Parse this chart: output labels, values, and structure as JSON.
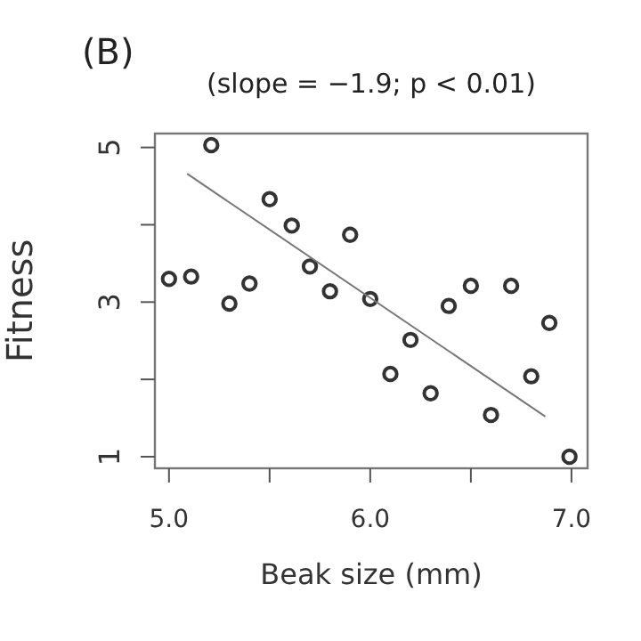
{
  "chart_data": {
    "type": "scatter",
    "title": "(B)",
    "subtitle": "(slope = −1.9; p < 0.01)",
    "xlabel": "Beak size (mm)",
    "ylabel": "Fitness",
    "xlim": [
      4.93,
      7.08
    ],
    "xticks": [
      {
        "value": 5.0,
        "label": "5.0"
      },
      {
        "value": 5.5,
        "label": null
      },
      {
        "value": 6.0,
        "label": "6.0"
      },
      {
        "value": 6.5,
        "label": null
      },
      {
        "value": 7.0,
        "label": "7.0"
      }
    ],
    "ylim": [
      0.85,
      5.18
    ],
    "yticks": [
      1,
      {
        "value": 2,
        "label": null
      },
      3,
      {
        "value": 4,
        "label": null
      },
      5
    ],
    "marker": "circle",
    "grid": false,
    "series": [
      {
        "color": "#333333",
        "x": [
          5.0,
          5.11,
          5.21,
          5.3,
          5.4,
          5.5,
          5.61,
          5.7,
          5.8,
          5.9,
          6.0,
          6.1,
          6.2,
          6.3,
          6.39,
          6.5,
          6.6,
          6.7,
          6.8,
          6.89,
          6.99
        ],
        "values": [
          3.3,
          3.33,
          5.03,
          2.98,
          3.24,
          4.33,
          3.99,
          3.46,
          3.14,
          3.87,
          3.04,
          2.07,
          2.51,
          1.82,
          2.95,
          3.21,
          1.54,
          3.21,
          2.04,
          2.73,
          1.0
        ]
      },
      {
        "type": "line",
        "color": "#777777",
        "marker": "none",
        "x": [
          5.09,
          6.87
        ],
        "values": [
          4.66,
          1.52
        ]
      }
    ]
  }
}
